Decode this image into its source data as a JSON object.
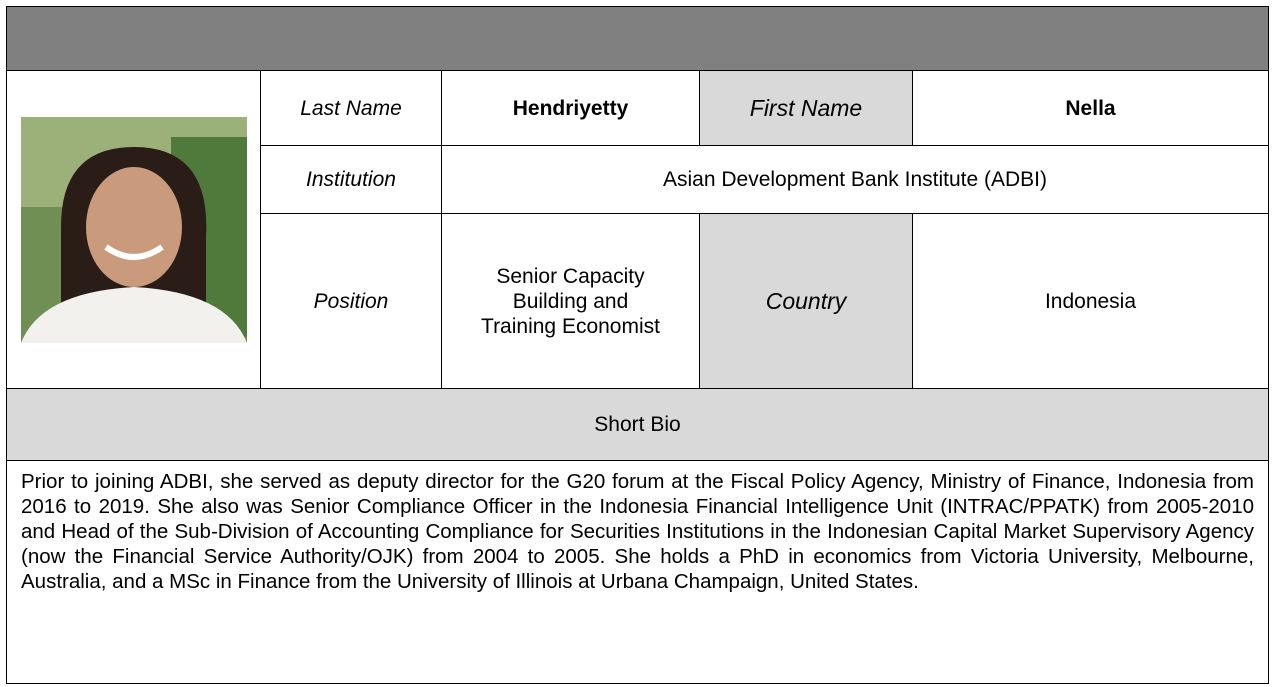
{
  "profile": {
    "last_name_label": "Last Name",
    "last_name": "Hendriyetty",
    "first_name_label": "First Name",
    "first_name": "Nella",
    "institution_label": "Institution",
    "institution": "Asian Development Bank Institute (ADBI)",
    "position_label": "Position",
    "position": "Senior Capacity Building and Training Economist",
    "country_label": "Country",
    "country": "Indonesia"
  },
  "bio": {
    "heading": "Short Bio",
    "text": "Prior to joining ADBI, she served as deputy director for the G20 forum at the Fiscal Policy Agency, Ministry of Finance, Indonesia from 2016 to 2019. She also was Senior Compliance Officer in the Indonesia Financial Intelligence Unit (INTRAC/PPATK) from 2005-2010 and Head of the Sub-Division of Accounting Compliance for Securities Institutions in the Indonesian Capital Market Supervisory Agency (now the Financial Service Authority/OJK) from 2004 to 2005. She holds a PhD in economics from Victoria University, Melbourne, Australia, and a MSc in Finance from the University of Illinois at Urbana Champaign, United States."
  }
}
